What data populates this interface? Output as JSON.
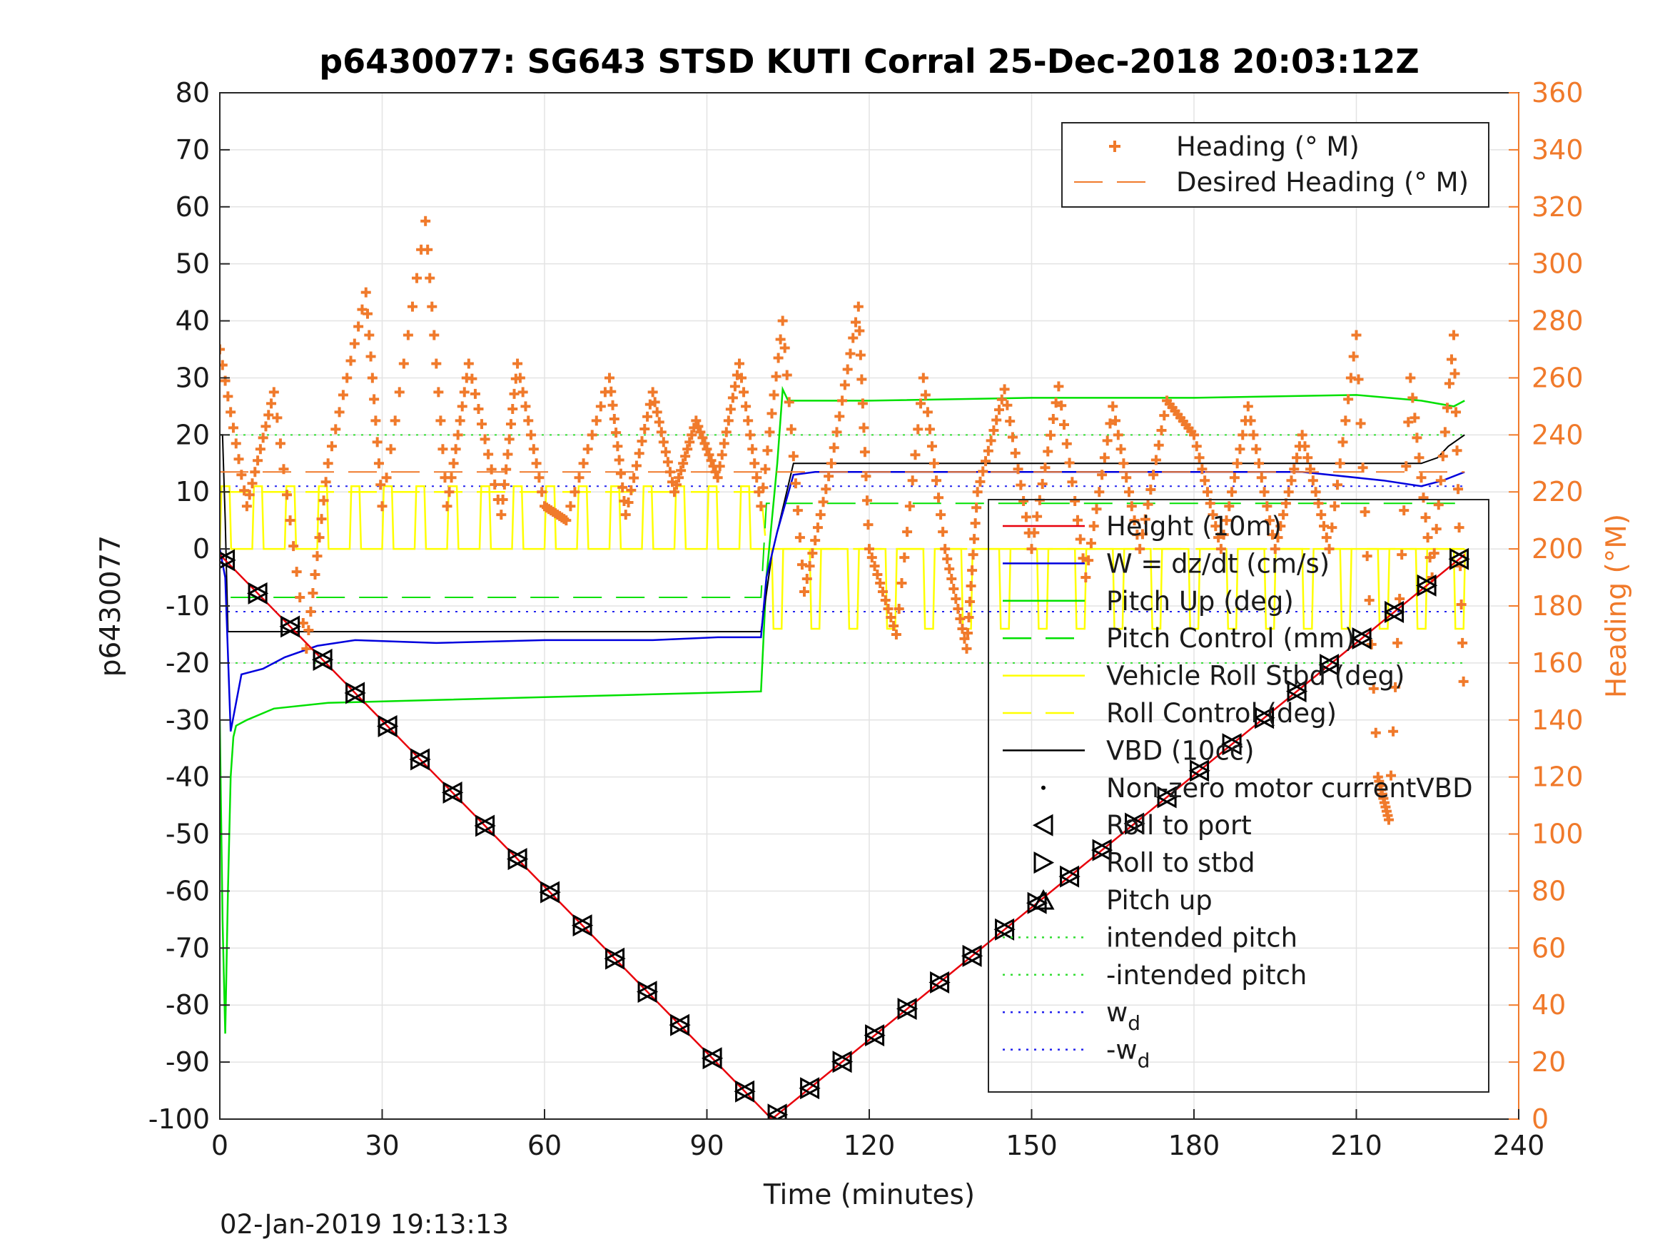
{
  "chart_data": {
    "type": "line",
    "title": "p6430077: SG643 STSD KUTI Corral 25-Dec-2018 20:03:12Z",
    "xlabel": "Time (minutes)",
    "ylabel": "p6430077",
    "y2label": "Heading (°M)",
    "footer": "02-Jan-2019 19:13:13",
    "xlim": [
      0,
      240
    ],
    "ylim": [
      -100,
      80
    ],
    "y2lim": [
      0,
      360
    ],
    "xticks": [
      "0",
      "30",
      "60",
      "90",
      "120",
      "150",
      "180",
      "210",
      "240"
    ],
    "yticks": [
      "80",
      "70",
      "60",
      "50",
      "40",
      "30",
      "20",
      "10",
      "0",
      "-10",
      "-20",
      "-30",
      "-40",
      "-50",
      "-60",
      "-70",
      "-80",
      "-90",
      "-100"
    ],
    "y2ticks": [
      "360",
      "340",
      "320",
      "300",
      "280",
      "260",
      "240",
      "220",
      "200",
      "180",
      "160",
      "140",
      "120",
      "100",
      "80",
      "60",
      "40",
      "20",
      "0"
    ],
    "grid": true,
    "colors": {
      "height": "#e8000b",
      "w": "#0000dd",
      "pitch": "#00e000",
      "roll": "#ffff00",
      "vbd": "#000000",
      "heading": "#f07a2b",
      "intended_pitch": "#33dd33",
      "wd": "#2222ee"
    },
    "legend_heading": {
      "position": "top-right",
      "entries": [
        "Heading (° M)",
        "Desired Heading (° M)"
      ]
    },
    "legend_main": {
      "position": "right",
      "entries": [
        "Height (10m)",
        "W = dz/dt (cm/s)",
        "Pitch Up (deg)",
        "Pitch Control (mm)",
        "Vehicle Roll Stbd (deg)",
        "Roll Control (deg)",
        "VBD (10cc)",
        "Non-zero motor currentVBD",
        "Roll to port",
        "Roll to stbd",
        "Pitch up",
        "intended pitch",
        "-intended pitch",
        "w",
        "-w"
      ],
      "subscript": "d"
    },
    "series": [
      {
        "name": "Height (10m)",
        "axis": "left",
        "x": [
          0,
          102,
          230
        ],
        "y": [
          -1,
          -100,
          -1
        ]
      },
      {
        "name": "W = dz/dt (cm/s)",
        "axis": "left",
        "x": [
          0,
          1,
          2,
          4,
          8,
          12,
          18,
          25,
          40,
          60,
          80,
          92,
          100,
          101,
          103,
          106,
          110,
          140,
          170,
          200,
          215,
          222,
          226,
          230
        ],
        "y": [
          0,
          -5,
          -32,
          -22,
          -21,
          -19,
          -17,
          -16,
          -16.5,
          -16,
          -16,
          -15.5,
          -15.5,
          -5,
          3,
          13,
          13.5,
          13.5,
          13.5,
          13.5,
          12,
          11,
          12,
          13.5
        ]
      },
      {
        "name": "Pitch Up (deg)",
        "axis": "left",
        "x": [
          0,
          0.5,
          1,
          1.5,
          2,
          2.5,
          3,
          5,
          10,
          20,
          40,
          60,
          80,
          100,
          101,
          103,
          104,
          105,
          120,
          150,
          180,
          210,
          222,
          228,
          230
        ],
        "y": [
          -30,
          -65,
          -85,
          -60,
          -40,
          -33,
          -31,
          -30,
          -28,
          -27,
          -26.5,
          -26,
          -25.5,
          -25,
          -5,
          15,
          28,
          26,
          26,
          26.5,
          26.5,
          27,
          26,
          25,
          26
        ]
      },
      {
        "name": "Pitch Control (mm)",
        "axis": "left",
        "x": [
          2,
          100,
          101,
          230
        ],
        "y": [
          -8.5,
          -8.5,
          8,
          8
        ]
      },
      {
        "name": "VBD (10cc)",
        "axis": "left",
        "x": [
          0,
          0.5,
          1,
          1.5,
          2,
          100,
          102,
          106,
          222,
          225,
          227,
          230
        ],
        "y": [
          20,
          20,
          5,
          -14.5,
          -14.5,
          -14.5,
          -1,
          15,
          15,
          16,
          18,
          20
        ]
      },
      {
        "name": "Heading (° M)",
        "axis": "right",
        "x": [
          0,
          5,
          10,
          16,
          20,
          27,
          30,
          38,
          42,
          46,
          52,
          55,
          60,
          64,
          72,
          75,
          80,
          84,
          88,
          92,
          96,
          100,
          104,
          108,
          113,
          118,
          120,
          125,
          130,
          134,
          138,
          140,
          145,
          150,
          155,
          160,
          165,
          170,
          175,
          180,
          185,
          190,
          195,
          200,
          205,
          210,
          214,
          216,
          220,
          224,
          228,
          230
        ],
        "y": [
          270,
          215,
          255,
          165,
          230,
          290,
          215,
          315,
          215,
          265,
          212,
          265,
          215,
          210,
          260,
          212,
          255,
          220,
          245,
          225,
          265,
          215,
          280,
          185,
          230,
          285,
          200,
          170,
          260,
          200,
          165,
          220,
          256,
          200,
          257,
          190,
          250,
          200,
          252,
          240,
          200,
          250,
          200,
          240,
          200,
          275,
          120,
          105,
          260,
          190,
          275,
          140
        ]
      },
      {
        "name": "Desired Heading (° M)",
        "axis": "right",
        "x": [
          0,
          230
        ],
        "y": [
          227,
          227
        ]
      }
    ],
    "annotations": {
      "intended_pitch": [
        20,
        -20
      ],
      "wd": [
        11,
        -11
      ],
      "marker_note": "Roll to port / Roll to stbd markers along the depth trace"
    }
  }
}
